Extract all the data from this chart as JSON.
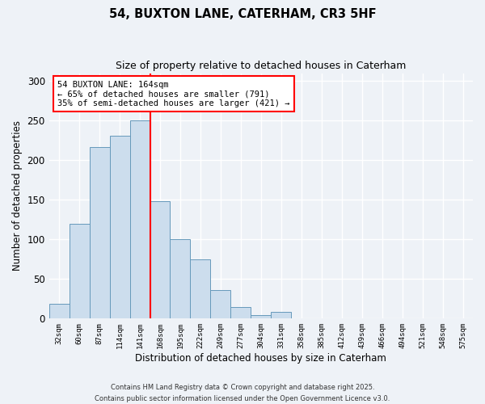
{
  "title": "54, BUXTON LANE, CATERHAM, CR3 5HF",
  "subtitle": "Size of property relative to detached houses in Caterham",
  "xlabel": "Distribution of detached houses by size in Caterham",
  "ylabel": "Number of detached properties",
  "bin_labels": [
    "32sqm",
    "60sqm",
    "87sqm",
    "114sqm",
    "141sqm",
    "168sqm",
    "195sqm",
    "222sqm",
    "249sqm",
    "277sqm",
    "304sqm",
    "331sqm",
    "358sqm",
    "385sqm",
    "412sqm",
    "439sqm",
    "466sqm",
    "494sqm",
    "521sqm",
    "548sqm",
    "575sqm"
  ],
  "bar_heights": [
    19,
    120,
    217,
    231,
    250,
    148,
    100,
    75,
    36,
    15,
    4,
    9,
    0,
    0,
    0,
    0,
    0,
    0,
    0,
    0,
    0
  ],
  "bar_color": "#ccdded",
  "bar_edge_color": "#6699bb",
  "vline_color": "red",
  "annotation_text": "54 BUXTON LANE: 164sqm\n← 65% of detached houses are smaller (791)\n35% of semi-detached houses are larger (421) →",
  "annotation_box_color": "white",
  "annotation_box_edge_color": "red",
  "ylim": [
    0,
    310
  ],
  "yticks": [
    0,
    50,
    100,
    150,
    200,
    250,
    300
  ],
  "background_color": "#eef2f7",
  "grid_color": "white",
  "footer_line1": "Contains HM Land Registry data © Crown copyright and database right 2025.",
  "footer_line2": "Contains public sector information licensed under the Open Government Licence v3.0."
}
